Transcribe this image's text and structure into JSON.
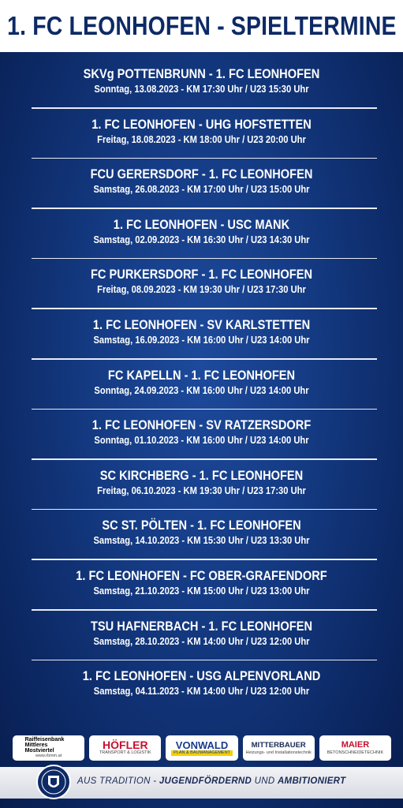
{
  "header": {
    "title": "1. FC LEONHOFEN - SPIELTERMINE"
  },
  "matches": [
    {
      "title": "SKVg POTTENBRUNN - 1. FC LEONHOFEN",
      "details": "Sonntag, 13.08.2023 - KM 17:30 Uhr / U23 15:30 Uhr"
    },
    {
      "title": "1. FC LEONHOFEN -  UHG HOFSTETTEN",
      "details": "Freitag, 18.08.2023 - KM 18:00 Uhr / U23 20:00 Uhr"
    },
    {
      "title": "FCU GERERSDORF - 1. FC LEONHOFEN",
      "details": "Samstag, 26.08.2023 - KM 17:00 Uhr / U23 15:00 Uhr"
    },
    {
      "title": "1. FC LEONHOFEN - USC MANK",
      "details": "Samstag, 02.09.2023 - KM 16:30 Uhr / U23 14:30 Uhr"
    },
    {
      "title": "FC PURKERSDORF - 1. FC LEONHOFEN",
      "details": "Freitag, 08.09.2023 - KM 19:30 Uhr / U23 17:30 Uhr"
    },
    {
      "title": "1. FC LEONHOFEN - SV KARLSTETTEN",
      "details": "Samstag, 16.09.2023 - KM 16:00 Uhr / U23 14:00 Uhr"
    },
    {
      "title": "FC KAPELLN - 1. FC LEONHOFEN",
      "details": "Sonntag, 24.09.2023 - KM 16:00 Uhr / U23 14:00 Uhr"
    },
    {
      "title": "1. FC LEONHOFEN - SV RATZERSDORF",
      "details": "Sonntag, 01.10.2023 - KM 16:00 Uhr / U23 14:00 Uhr"
    },
    {
      "title": "SC KIRCHBERG - 1. FC LEONHOFEN",
      "details": "Freitag, 06.10.2023 - KM 19:30 Uhr / U23 17:30 Uhr"
    },
    {
      "title": "SC ST. PÖLTEN - 1. FC LEONHOFEN",
      "details": "Samstag, 14.10.2023 - KM 15:30 Uhr / U23 13:30 Uhr"
    },
    {
      "title": "1. FC LEONHOFEN - FC OBER-GRAFENDORF",
      "details": "Samstag, 21.10.2023 - KM 15:00 Uhr / U23 13:00 Uhr"
    },
    {
      "title": "TSU HAFNERBACH - 1. FC LEONHOFEN",
      "details": "Samstag, 28.10.2023 - KM 14:00 Uhr / U23 12:00 Uhr"
    },
    {
      "title": "1. FC LEONHOFEN -  USG ALPENVORLAND",
      "details": "Samstag, 04.11.2023 - KM 14:00 Uhr / U23 12:00 Uhr"
    }
  ],
  "sponsors": [
    {
      "name": "Raiffeisenbank Mittleres Mostviertel",
      "sub": "www.rbmm.at"
    },
    {
      "name": "HÖFLER",
      "sub": "TRANSPORT & LOGISTIK"
    },
    {
      "name": "VONWALD",
      "sub": "PLAN & BAUMANAGEMENT"
    },
    {
      "name": "MITTERBAUER",
      "sub": "Heizungs- und Installationstechnik"
    },
    {
      "name": "MAIER",
      "sub": "BETONSCHNEIDETECHNIK"
    }
  ],
  "footer": {
    "slogan": [
      "AUS TRADITION",
      " - ",
      "JUGENDFÖRDERND",
      " UND ",
      "AMBITIONIERT"
    ]
  }
}
